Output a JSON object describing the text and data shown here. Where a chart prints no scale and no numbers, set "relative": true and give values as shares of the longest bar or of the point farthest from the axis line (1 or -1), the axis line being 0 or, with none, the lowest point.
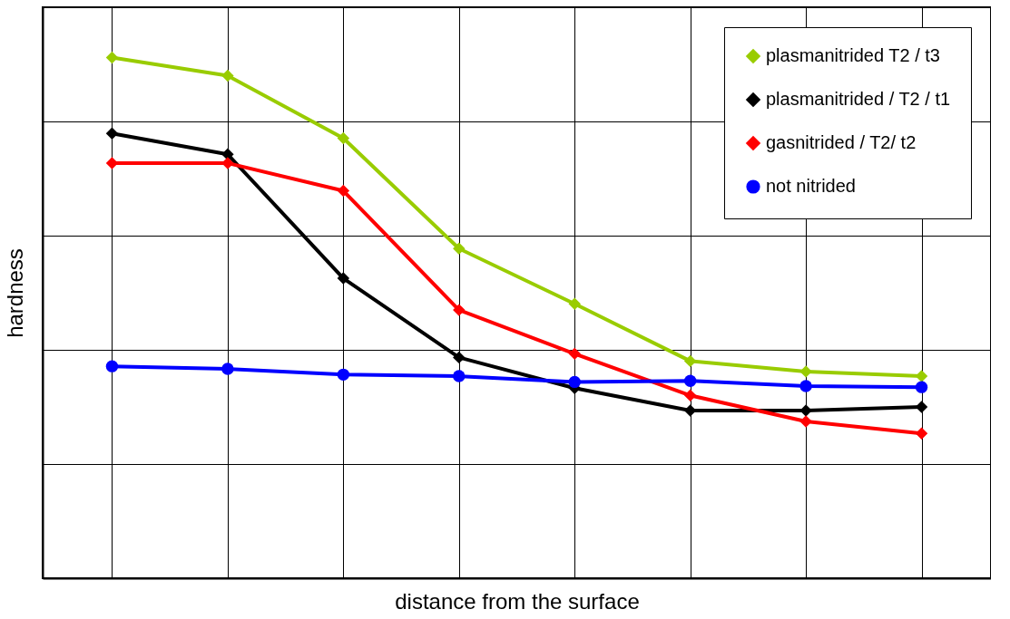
{
  "chart_data": {
    "type": "line",
    "xlabel": "distance from the surface",
    "ylabel": "hardness",
    "relative": true,
    "categories": [
      null,
      null,
      null,
      null,
      null,
      null,
      null,
      null
    ],
    "grid": true,
    "legend": "top right",
    "line_style": "solid",
    "series": [
      {
        "name": "plasmanitrided T2 / t3",
        "color": "#99cc00",
        "marker": "diamond",
        "values": [
          1,
          0.965,
          0.845,
          0.633,
          0.527,
          0.417,
          0.397,
          0.388
        ]
      },
      {
        "name": "plasmanitrided / T2 / t1",
        "color": "#000000",
        "marker": "diamond",
        "values": [
          0.854,
          0.814,
          0.576,
          0.424,
          0.365,
          0.322,
          0.322,
          0.329
        ]
      },
      {
        "name": "gasnitrided / T2/ t2",
        "color": "#ff0000",
        "marker": "diamond",
        "values": [
          0.797,
          0.797,
          0.744,
          0.515,
          0.431,
          0.351,
          0.301,
          0.278
        ]
      },
      {
        "name": "not nitrided",
        "color": "#0000ff",
        "marker": "circle",
        "values": [
          0.407,
          0.402,
          0.391,
          0.388,
          0.377,
          0.379,
          0.369,
          0.367
        ]
      }
    ]
  }
}
